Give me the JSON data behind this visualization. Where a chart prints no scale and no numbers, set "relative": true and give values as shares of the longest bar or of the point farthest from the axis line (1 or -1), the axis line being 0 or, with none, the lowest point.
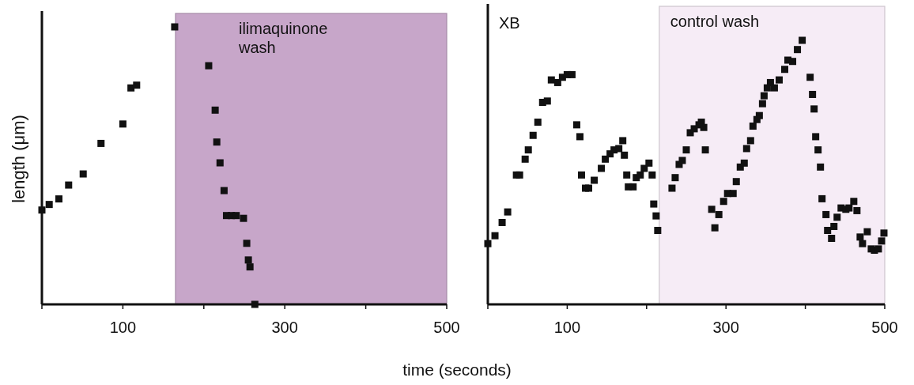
{
  "chart_data": [
    {
      "type": "scatter",
      "relative": true,
      "ylabel": "length (μm)",
      "xlabel": "time (seconds)",
      "xlim": [
        0,
        500
      ],
      "xticks": [
        {
          "value": 0,
          "label": null
        },
        100,
        {
          "value": 200,
          "label": null
        },
        300,
        {
          "value": 400,
          "label": null
        },
        500
      ],
      "marker": "square",
      "tick_labels": "x",
      "bands": [
        {
          "axis": "x",
          "from": 165,
          "to": 500,
          "label": "ilimaquinone wash",
          "color": "#c7a6c9"
        }
      ],
      "series": [
        {
          "color": "#111111",
          "x": [
            0,
            9,
            21,
            33,
            51,
            73,
            100,
            110,
            117,
            164,
            206,
            214,
            216,
            220,
            225,
            228,
            234,
            240,
            249,
            253,
            255,
            257,
            263
          ],
          "values": [
            0.34,
            0.36,
            0.38,
            0.43,
            0.47,
            0.58,
            0.65,
            0.78,
            0.79,
            1,
            0.86,
            0.7,
            0.585,
            0.51,
            0.41,
            0.32,
            0.32,
            0.32,
            0.31,
            0.22,
            0.16,
            0.135,
            0
          ]
        }
      ]
    },
    {
      "type": "scatter",
      "relative": true,
      "xlim": [
        0,
        500
      ],
      "xticks": [
        {
          "value": 0,
          "label": null
        },
        100,
        {
          "value": 200,
          "label": null
        },
        300,
        {
          "value": 400,
          "label": null
        },
        500
      ],
      "marker": "square",
      "tick_labels": "x",
      "annotations": [
        "XB"
      ],
      "bands": [
        {
          "axis": "x",
          "from": 216,
          "to": 500,
          "label": "control wash",
          "color": "#f6ecf6"
        }
      ],
      "series": [
        {
          "color": "#111111",
          "x": [
            0,
            9,
            18,
            25,
            36,
            40,
            47,
            51,
            57,
            63,
            69,
            75,
            80,
            88,
            94,
            100,
            106,
            112,
            116,
            118,
            123,
            127,
            134,
            143,
            148,
            154,
            159,
            165,
            170,
            172,
            175,
            177,
            183,
            187,
            192,
            197,
            203,
            207,
            209,
            212,
            214,
            232,
            236,
            241,
            245,
            250,
            255,
            260,
            266,
            269,
            272,
            274,
            282,
            286,
            291,
            297,
            302,
            309,
            313,
            318,
            323,
            326,
            331,
            334,
            339,
            342,
            346,
            348,
            352,
            356,
            361,
            367,
            374,
            378,
            384,
            390,
            396,
            406,
            409,
            411,
            413,
            416,
            419,
            421,
            426,
            428,
            433,
            436,
            440,
            445,
            451,
            455,
            461,
            465,
            469,
            472,
            478,
            483,
            487,
            492,
            496,
            499
          ],
          "values": [
            0.23,
            0.26,
            0.31,
            0.35,
            0.49,
            0.49,
            0.55,
            0.585,
            0.64,
            0.69,
            0.765,
            0.77,
            0.85,
            0.84,
            0.86,
            0.87,
            0.87,
            0.68,
            0.635,
            0.49,
            0.44,
            0.44,
            0.47,
            0.515,
            0.55,
            0.57,
            0.585,
            0.59,
            0.62,
            0.565,
            0.49,
            0.445,
            0.445,
            0.48,
            0.49,
            0.515,
            0.535,
            0.49,
            0.38,
            0.335,
            0.28,
            0.44,
            0.48,
            0.53,
            0.545,
            0.585,
            0.65,
            0.665,
            0.68,
            0.69,
            0.67,
            0.585,
            0.36,
            0.29,
            0.34,
            0.39,
            0.42,
            0.42,
            0.465,
            0.52,
            0.535,
            0.59,
            0.62,
            0.675,
            0.7,
            0.715,
            0.76,
            0.79,
            0.82,
            0.84,
            0.82,
            0.85,
            0.89,
            0.925,
            0.92,
            0.965,
            1,
            0.86,
            0.795,
            0.74,
            0.635,
            0.585,
            0.52,
            0.4,
            0.34,
            0.28,
            0.25,
            0.295,
            0.33,
            0.365,
            0.36,
            0.365,
            0.39,
            0.355,
            0.255,
            0.23,
            0.275,
            0.21,
            0.205,
            0.21,
            0.24,
            0.27
          ]
        }
      ]
    }
  ]
}
